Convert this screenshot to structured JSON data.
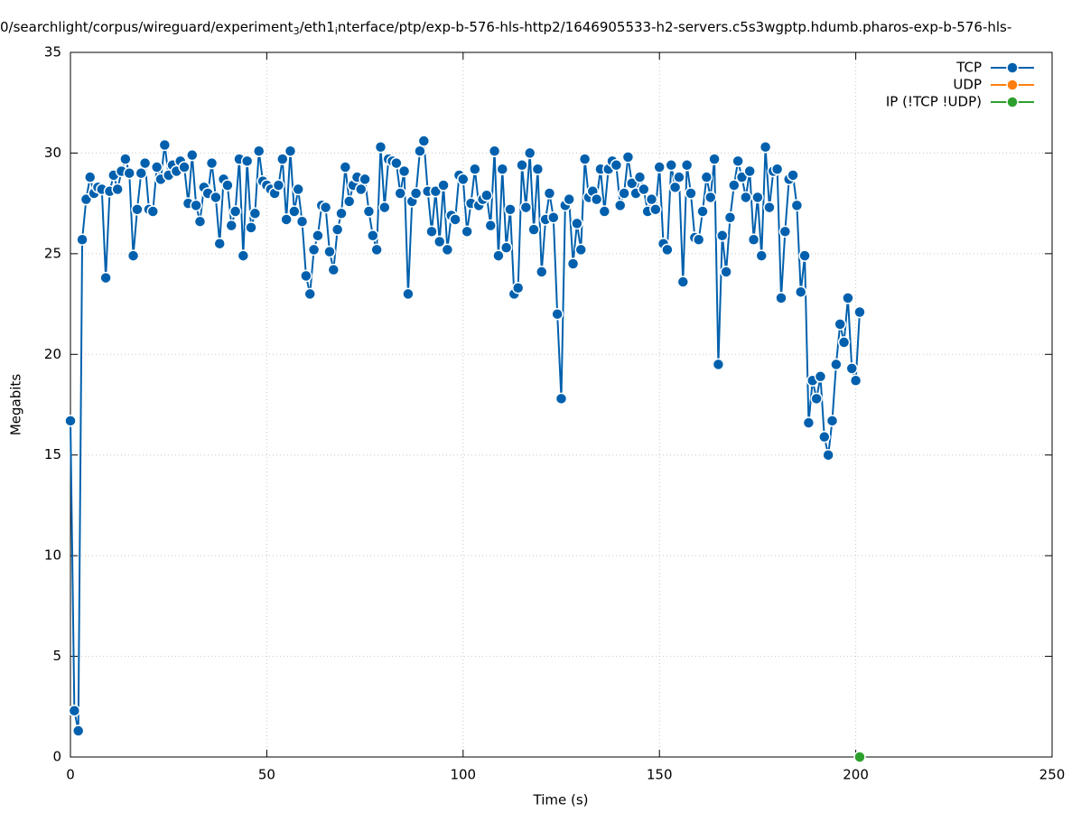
{
  "chart_data": {
    "type": "line",
    "title": [
      "0/searchlight/corpus/wireguard/experiment",
      "3",
      "/eth1",
      "i",
      "nterface/ptp/exp-b-576-hls-http2/1646905533-h2-servers.c5s3wgptp.hdumb.pharos-exp-b-576-hls-"
    ],
    "xlabel": "Time (s)",
    "ylabel": "Megabits",
    "xlim": [
      0,
      250
    ],
    "ylim": [
      0,
      35
    ],
    "xticks": [
      0,
      50,
      100,
      150,
      200,
      250
    ],
    "yticks": [
      0,
      5,
      10,
      15,
      20,
      25,
      30,
      35
    ],
    "grid": true,
    "legend": "top-right",
    "series": [
      {
        "name": "TCP",
        "color": "#0060ad",
        "x": [
          0,
          1,
          2,
          3,
          4,
          5,
          6,
          7,
          8,
          9,
          10,
          11,
          12,
          13,
          14,
          15,
          16,
          17,
          18,
          19,
          20,
          21,
          22,
          23,
          24,
          25,
          26,
          27,
          28,
          29,
          30,
          31,
          32,
          33,
          34,
          35,
          36,
          37,
          38,
          39,
          40,
          41,
          42,
          43,
          44,
          45,
          46,
          47,
          48,
          49,
          50,
          51,
          52,
          53,
          54,
          55,
          56,
          57,
          58,
          59,
          60,
          61,
          62,
          63,
          64,
          65,
          66,
          67,
          68,
          69,
          70,
          71,
          72,
          73,
          74,
          75,
          76,
          77,
          78,
          79,
          80,
          81,
          82,
          83,
          84,
          85,
          86,
          87,
          88,
          89,
          90,
          91,
          92,
          93,
          94,
          95,
          96,
          97,
          98,
          99,
          100,
          101,
          102,
          103,
          104,
          105,
          106,
          107,
          108,
          109,
          110,
          111,
          112,
          113,
          114,
          115,
          116,
          117,
          118,
          119,
          120,
          121,
          122,
          123,
          124,
          125,
          126,
          127,
          128,
          129,
          130,
          131,
          132,
          133,
          134,
          135,
          136,
          137,
          138,
          139,
          140,
          141,
          142,
          143,
          144,
          145,
          146,
          147,
          148,
          149,
          150,
          151,
          152,
          153,
          154,
          155,
          156,
          157,
          158,
          159,
          160,
          161,
          162,
          163,
          164,
          165,
          166,
          167,
          168,
          169,
          170,
          171,
          172,
          173,
          174,
          175,
          176,
          177,
          178,
          179,
          180,
          181,
          182,
          183,
          184,
          185,
          186,
          187,
          188,
          189,
          190,
          191,
          192,
          193,
          194,
          195,
          196,
          197,
          198,
          199,
          200,
          201
        ],
        "values": [
          16.7,
          2.3,
          1.3,
          25.7,
          27.7,
          28.8,
          28.0,
          28.3,
          28.2,
          23.8,
          28.1,
          28.9,
          28.2,
          29.1,
          29.7,
          29.0,
          24.9,
          27.2,
          29.0,
          29.5,
          27.2,
          27.1,
          29.3,
          28.7,
          30.4,
          28.9,
          29.4,
          29.1,
          29.6,
          29.3,
          27.5,
          29.9,
          27.4,
          26.6,
          28.3,
          28.0,
          29.5,
          27.8,
          25.5,
          28.7,
          28.4,
          26.4,
          27.1,
          29.7,
          24.9,
          29.6,
          26.3,
          27.0,
          30.1,
          28.6,
          28.4,
          28.2,
          28.0,
          28.4,
          29.7,
          26.7,
          30.1,
          27.1,
          28.2,
          26.6,
          23.9,
          23.0,
          25.2,
          25.9,
          27.4,
          27.3,
          25.1,
          24.2,
          26.2,
          27.0,
          29.3,
          27.6,
          28.4,
          28.8,
          28.2,
          28.7,
          27.1,
          25.9,
          25.2,
          30.3,
          27.3,
          29.7,
          29.6,
          29.5,
          28.0,
          29.1,
          23.0,
          27.6,
          28.0,
          30.1,
          30.6,
          28.1,
          26.1,
          28.1,
          25.6,
          28.4,
          25.2,
          26.9,
          26.7,
          28.9,
          28.7,
          26.1,
          27.5,
          29.2,
          27.4,
          27.7,
          27.9,
          26.4,
          30.1,
          24.9,
          29.2,
          25.3,
          27.2,
          23.0,
          23.3,
          29.4,
          27.3,
          30.0,
          26.2,
          29.2,
          24.1,
          26.7,
          28.0,
          26.8,
          22.0,
          17.8,
          27.4,
          27.7,
          24.5,
          26.5,
          25.2,
          29.7,
          27.8,
          28.1,
          27.7,
          29.2,
          27.1,
          29.2,
          29.6,
          29.4,
          27.4,
          28.0,
          29.8,
          28.5,
          28.0,
          28.8,
          28.2,
          27.1,
          27.7,
          27.2,
          29.3,
          25.5,
          25.2,
          29.4,
          28.3,
          28.8,
          23.6,
          29.4,
          28.0,
          25.8,
          25.7,
          27.1,
          28.8,
          27.8,
          29.7,
          19.5,
          25.9,
          24.1,
          26.8,
          28.4,
          29.6,
          28.8,
          27.8,
          29.1,
          25.7,
          27.8,
          24.9,
          30.3,
          27.3,
          29.1,
          29.2,
          22.8,
          26.1,
          28.7,
          28.9,
          27.4,
          23.1,
          24.9,
          16.6,
          18.7,
          17.8,
          18.9,
          15.9,
          15.0,
          16.7,
          19.5,
          21.5,
          20.6,
          22.8,
          19.3,
          18.7,
          22.1
        ]
      },
      {
        "name": "UDP",
        "color": "#ff7f0e",
        "x": [],
        "values": []
      },
      {
        "name": "IP (!TCP  !UDP)",
        "color": "#2ca02c",
        "x": [
          201
        ],
        "values": [
          0
        ]
      }
    ]
  }
}
